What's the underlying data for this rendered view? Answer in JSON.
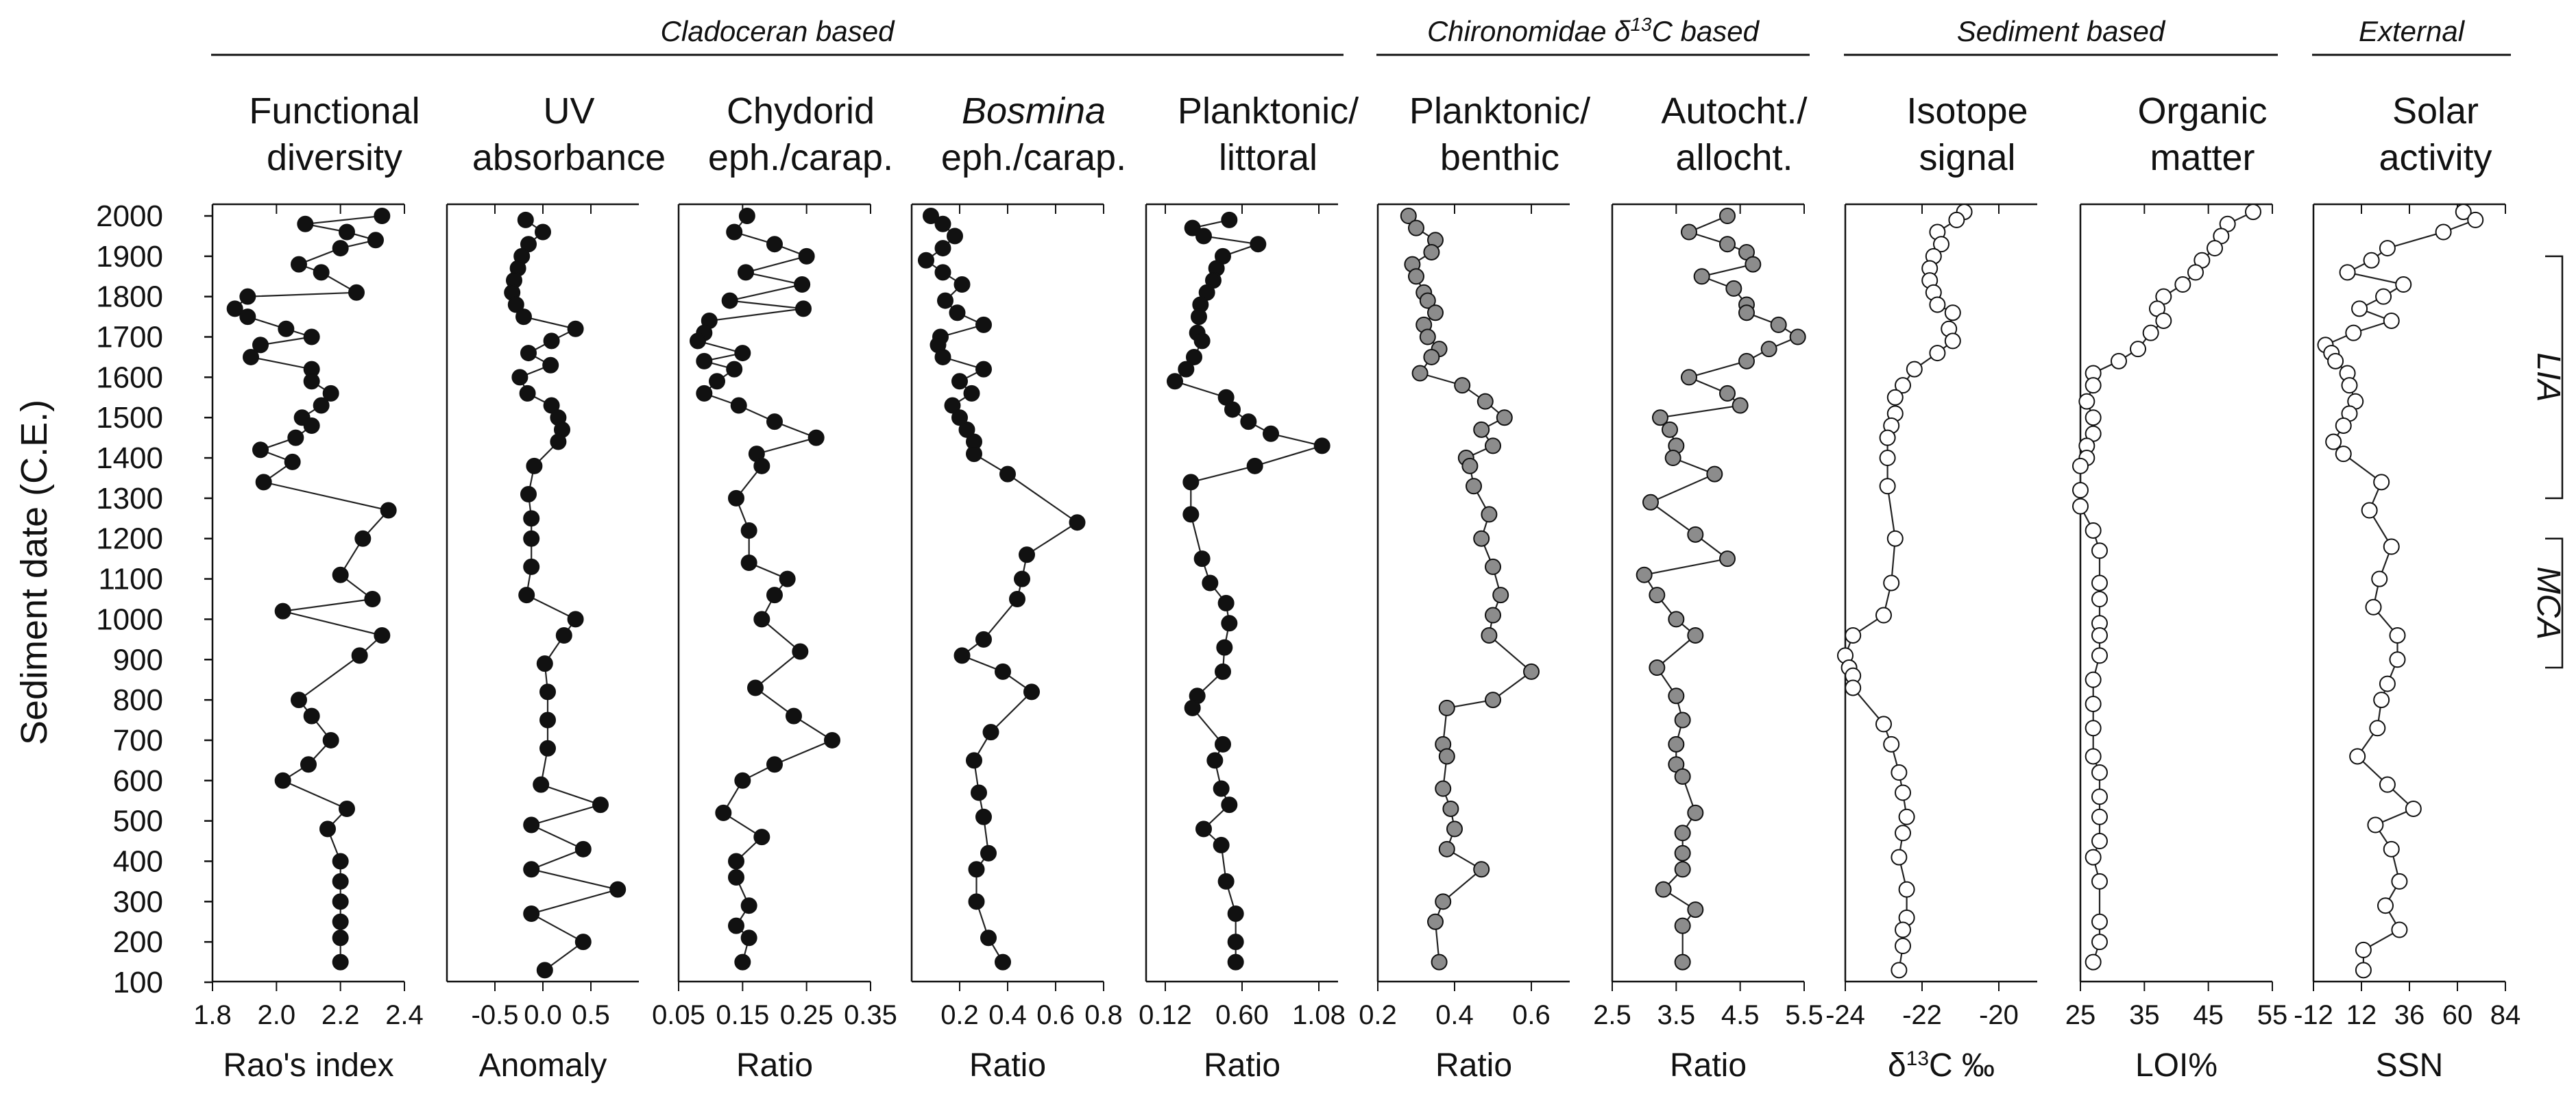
{
  "y_axis": {
    "label": "Sediment date (C.E.)",
    "min": 100,
    "max": 2000,
    "step": 100,
    "ticks": [
      "2000",
      "1900",
      "1800",
      "1700",
      "1600",
      "1500",
      "1400",
      "1300",
      "1200",
      "1100",
      "1000",
      "900",
      "800",
      "700",
      "600",
      "500",
      "400",
      "300",
      "200",
      "100"
    ]
  },
  "groups": [
    {
      "label": "Cladoceran based",
      "from": 0,
      "to": 4
    },
    {
      "label": "Chironomidae δ",
      "sup": "13",
      "suffix": "C based",
      "from": 5,
      "to": 6
    },
    {
      "label": "Sediment based",
      "from": 7,
      "to": 8
    },
    {
      "label": "External",
      "from": 9,
      "to": 9
    }
  ],
  "periods": [
    {
      "label": "LIA",
      "from": 1300,
      "to": 1900
    },
    {
      "label": "MCA",
      "from": 880,
      "to": 1200
    }
  ],
  "colors": {
    "black": "#111111",
    "gray": "#8c8c8c",
    "white": "#ffffff"
  },
  "chart_data": [
    {
      "type": "line",
      "title_line1": "Functional",
      "title_line2": "diversity",
      "xlabel": "Rao's index",
      "marker": "black",
      "xlim": [
        1.8,
        2.4
      ],
      "x_ticks": [
        1.8,
        2.0,
        2.2,
        2.4
      ],
      "x_tick_labels": [
        "1.8",
        "2.0",
        "2.2",
        "2.4"
      ],
      "y": [
        2000,
        1980,
        1960,
        1940,
        1920,
        1880,
        1860,
        1810,
        1800,
        1770,
        1750,
        1720,
        1700,
        1680,
        1650,
        1620,
        1590,
        1560,
        1530,
        1500,
        1480,
        1450,
        1420,
        1390,
        1340,
        1270,
        1200,
        1110,
        1050,
        1020,
        960,
        910,
        800,
        760,
        700,
        640,
        600,
        530,
        480,
        400,
        350,
        300,
        250,
        210,
        150
      ],
      "values": [
        2.33,
        2.09,
        2.22,
        2.31,
        2.2,
        2.07,
        2.14,
        2.25,
        1.91,
        1.87,
        1.91,
        2.03,
        2.11,
        1.95,
        1.92,
        2.11,
        2.11,
        2.17,
        2.14,
        2.08,
        2.11,
        2.06,
        1.95,
        2.05,
        1.96,
        2.35,
        2.27,
        2.2,
        2.3,
        2.02,
        2.33,
        2.26,
        2.07,
        2.11,
        2.17,
        2.1,
        2.02,
        2.22,
        2.16,
        2.2,
        2.2,
        2.2,
        2.2,
        2.2,
        2.2
      ]
    },
    {
      "type": "line",
      "title_line1": "UV",
      "title_line2": "absorbance",
      "xlabel": "Anomaly",
      "marker": "black",
      "xlim": [
        -1.0,
        1.0
      ],
      "x_ticks": [
        -0.5,
        0.0,
        0.5
      ],
      "x_tick_labels": [
        "-0.5",
        "0.0",
        "0.5"
      ],
      "y": [
        1990,
        1960,
        1930,
        1900,
        1870,
        1840,
        1810,
        1780,
        1750,
        1720,
        1690,
        1660,
        1630,
        1600,
        1560,
        1530,
        1500,
        1470,
        1440,
        1380,
        1310,
        1250,
        1200,
        1130,
        1060,
        1000,
        960,
        890,
        820,
        750,
        680,
        590,
        540,
        490,
        430,
        380,
        330,
        270,
        200,
        130
      ],
      "values": [
        -0.18,
        0.0,
        -0.15,
        -0.22,
        -0.26,
        -0.3,
        -0.32,
        -0.28,
        -0.2,
        0.34,
        0.09,
        -0.15,
        0.08,
        -0.24,
        -0.16,
        0.09,
        0.16,
        0.2,
        0.16,
        -0.09,
        -0.15,
        -0.12,
        -0.12,
        -0.12,
        -0.17,
        0.34,
        0.22,
        0.02,
        0.05,
        0.05,
        0.05,
        -0.02,
        0.6,
        -0.12,
        0.42,
        -0.12,
        0.78,
        -0.12,
        0.42,
        0.02
      ]
    },
    {
      "type": "line",
      "title_line1": "Chydorid",
      "title_line2": "eph./carap.",
      "xlabel": "Ratio",
      "marker": "black",
      "xlim": [
        0.05,
        0.35
      ],
      "x_ticks": [
        0.05,
        0.15,
        0.25,
        0.35
      ],
      "x_tick_labels": [
        "0.05",
        "0.15",
        "0.25",
        "0.35"
      ],
      "y": [
        2000,
        1960,
        1930,
        1900,
        1860,
        1830,
        1790,
        1770,
        1740,
        1710,
        1690,
        1660,
        1640,
        1620,
        1590,
        1560,
        1530,
        1490,
        1450,
        1410,
        1380,
        1300,
        1220,
        1140,
        1100,
        1060,
        1000,
        920,
        830,
        760,
        700,
        640,
        600,
        520,
        460,
        400,
        360,
        290,
        240,
        210,
        150
      ],
      "values": [
        0.157,
        0.137,
        0.2,
        0.25,
        0.155,
        0.243,
        0.13,
        0.245,
        0.098,
        0.09,
        0.08,
        0.15,
        0.09,
        0.137,
        0.11,
        0.09,
        0.144,
        0.2,
        0.265,
        0.172,
        0.18,
        0.14,
        0.16,
        0.16,
        0.22,
        0.2,
        0.18,
        0.24,
        0.17,
        0.23,
        0.29,
        0.2,
        0.15,
        0.12,
        0.18,
        0.14,
        0.14,
        0.16,
        0.14,
        0.16,
        0.15
      ]
    },
    {
      "type": "line",
      "title_line1": "Bosmina",
      "title_line2": "eph./carap.",
      "title_italic": true,
      "xlabel": "Ratio",
      "marker": "black",
      "xlim": [
        0.0,
        0.8
      ],
      "x_ticks": [
        0.2,
        0.4,
        0.6,
        0.8
      ],
      "x_tick_labels": [
        "0.2",
        "0.4",
        "0.6",
        "0.8"
      ],
      "y": [
        2000,
        1980,
        1950,
        1920,
        1890,
        1860,
        1830,
        1790,
        1760,
        1730,
        1700,
        1680,
        1650,
        1620,
        1590,
        1560,
        1530,
        1500,
        1470,
        1440,
        1410,
        1360,
        1240,
        1160,
        1100,
        1050,
        950,
        910,
        870,
        820,
        720,
        650,
        570,
        510,
        420,
        380,
        300,
        210,
        150
      ],
      "values": [
        0.08,
        0.13,
        0.18,
        0.13,
        0.06,
        0.13,
        0.21,
        0.14,
        0.19,
        0.3,
        0.12,
        0.11,
        0.13,
        0.3,
        0.2,
        0.25,
        0.17,
        0.2,
        0.23,
        0.26,
        0.26,
        0.4,
        0.69,
        0.48,
        0.46,
        0.44,
        0.3,
        0.21,
        0.38,
        0.5,
        0.33,
        0.26,
        0.28,
        0.3,
        0.32,
        0.27,
        0.27,
        0.32,
        0.38
      ]
    },
    {
      "type": "line",
      "title_line1": "Planktonic/",
      "title_line2": "littoral",
      "xlabel": "Ratio",
      "marker": "black",
      "xlim": [
        0.0,
        1.2
      ],
      "x_ticks": [
        0.12,
        0.6,
        1.08
      ],
      "x_tick_labels": [
        "0.12",
        "0.60",
        "1.08"
      ],
      "y": [
        1990,
        1970,
        1950,
        1930,
        1900,
        1870,
        1840,
        1810,
        1780,
        1750,
        1710,
        1690,
        1650,
        1620,
        1590,
        1550,
        1520,
        1490,
        1460,
        1430,
        1380,
        1340,
        1260,
        1150,
        1090,
        1040,
        990,
        930,
        870,
        810,
        780,
        690,
        650,
        580,
        540,
        480,
        440,
        350,
        270,
        200,
        150
      ],
      "values": [
        0.52,
        0.29,
        0.36,
        0.7,
        0.48,
        0.44,
        0.42,
        0.38,
        0.34,
        0.33,
        0.32,
        0.35,
        0.3,
        0.25,
        0.18,
        0.5,
        0.54,
        0.64,
        0.78,
        1.1,
        0.68,
        0.28,
        0.28,
        0.35,
        0.4,
        0.5,
        0.52,
        0.49,
        0.48,
        0.32,
        0.29,
        0.48,
        0.43,
        0.47,
        0.52,
        0.36,
        0.47,
        0.5,
        0.56,
        0.56,
        0.56
      ]
    },
    {
      "type": "line",
      "title_line1": "Planktonic/",
      "title_line2": "benthic",
      "xlabel": "Ratio",
      "marker": "gray",
      "xlim": [
        0.2,
        0.7
      ],
      "x_ticks": [
        0.2,
        0.4,
        0.6
      ],
      "x_tick_labels": [
        "0.2",
        "0.4",
        "0.6"
      ],
      "y": [
        2000,
        1970,
        1940,
        1910,
        1880,
        1850,
        1810,
        1790,
        1760,
        1730,
        1700,
        1670,
        1650,
        1610,
        1580,
        1540,
        1500,
        1470,
        1430,
        1400,
        1380,
        1330,
        1260,
        1200,
        1130,
        1060,
        1010,
        960,
        870,
        800,
        780,
        690,
        660,
        580,
        530,
        480,
        430,
        380,
        300,
        250,
        150
      ],
      "values": [
        0.28,
        0.3,
        0.35,
        0.34,
        0.29,
        0.3,
        0.32,
        0.33,
        0.35,
        0.32,
        0.33,
        0.36,
        0.34,
        0.31,
        0.42,
        0.48,
        0.53,
        0.47,
        0.5,
        0.43,
        0.44,
        0.45,
        0.49,
        0.47,
        0.5,
        0.52,
        0.5,
        0.49,
        0.6,
        0.5,
        0.38,
        0.37,
        0.38,
        0.37,
        0.39,
        0.4,
        0.38,
        0.47,
        0.37,
        0.35,
        0.36
      ]
    },
    {
      "type": "line",
      "title_line1": "Autocht./",
      "title_line2": "allocht.",
      "xlabel": "Ratio",
      "marker": "gray",
      "xlim": [
        2.5,
        5.5
      ],
      "x_ticks": [
        2.5,
        3.5,
        4.5,
        5.5
      ],
      "x_tick_labels": [
        "2.5",
        "3.5",
        "4.5",
        "5.5"
      ],
      "y": [
        2000,
        1960,
        1930,
        1910,
        1880,
        1850,
        1820,
        1780,
        1760,
        1730,
        1700,
        1670,
        1640,
        1600,
        1560,
        1530,
        1500,
        1470,
        1430,
        1400,
        1360,
        1290,
        1210,
        1150,
        1110,
        1060,
        1000,
        960,
        880,
        810,
        750,
        690,
        640,
        610,
        520,
        470,
        420,
        380,
        330,
        280,
        240,
        150
      ],
      "values": [
        4.3,
        3.7,
        4.3,
        4.6,
        4.7,
        3.9,
        4.4,
        4.6,
        4.6,
        5.1,
        5.4,
        4.95,
        4.6,
        3.7,
        4.3,
        4.5,
        3.25,
        3.4,
        3.5,
        3.45,
        4.1,
        3.1,
        3.8,
        4.3,
        3.0,
        3.2,
        3.5,
        3.8,
        3.2,
        3.5,
        3.6,
        3.5,
        3.5,
        3.6,
        3.8,
        3.6,
        3.6,
        3.6,
        3.3,
        3.8,
        3.6,
        3.6
      ]
    },
    {
      "type": "line",
      "title_line1": "Isotope",
      "title_line2": "signal",
      "xlabel": "δ¹³C ‰",
      "marker": "white",
      "xlim": [
        -24,
        -19
      ],
      "x_ticks": [
        -24,
        -22,
        -20
      ],
      "x_tick_labels": [
        "-24",
        "-22",
        "-20"
      ],
      "y": [
        2010,
        1990,
        1960,
        1930,
        1900,
        1870,
        1840,
        1810,
        1780,
        1760,
        1720,
        1690,
        1660,
        1620,
        1580,
        1550,
        1510,
        1480,
        1450,
        1400,
        1330,
        1200,
        1090,
        1010,
        960,
        910,
        880,
        860,
        830,
        740,
        690,
        620,
        570,
        510,
        470,
        410,
        330,
        260,
        230,
        190,
        130
      ],
      "values": [
        -20.9,
        -21.1,
        -21.6,
        -21.5,
        -21.7,
        -21.8,
        -21.8,
        -21.7,
        -21.6,
        -21.2,
        -21.3,
        -21.2,
        -21.6,
        -22.2,
        -22.5,
        -22.7,
        -22.7,
        -22.8,
        -22.9,
        -22.9,
        -22.9,
        -22.7,
        -22.8,
        -23.0,
        -23.8,
        -24.0,
        -23.9,
        -23.8,
        -23.8,
        -23.0,
        -22.8,
        -22.6,
        -22.5,
        -22.4,
        -22.5,
        -22.6,
        -22.4,
        -22.4,
        -22.5,
        -22.5,
        -22.6
      ]
    },
    {
      "type": "line",
      "title_line1": "Organic",
      "title_line2": "matter",
      "xlabel": "LOI%",
      "marker": "white",
      "xlim": [
        25,
        55
      ],
      "x_ticks": [
        25,
        35,
        45,
        55
      ],
      "x_tick_labels": [
        "25",
        "35",
        "45",
        "55"
      ],
      "y": [
        2010,
        1980,
        1950,
        1920,
        1890,
        1860,
        1830,
        1800,
        1770,
        1740,
        1710,
        1670,
        1640,
        1610,
        1580,
        1540,
        1500,
        1460,
        1430,
        1400,
        1380,
        1320,
        1280,
        1220,
        1170,
        1090,
        1050,
        990,
        960,
        910,
        850,
        790,
        730,
        660,
        620,
        560,
        510,
        450,
        410,
        350,
        250,
        200,
        150
      ],
      "values": [
        52.0,
        48.0,
        47.0,
        46.0,
        44.0,
        43.0,
        41.0,
        38.0,
        37.0,
        38.0,
        36.0,
        34.0,
        31.0,
        27.0,
        27.0,
        26.0,
        27.0,
        27.0,
        26.0,
        26.0,
        25.0,
        25.0,
        25.0,
        27.0,
        28.0,
        28.0,
        28.0,
        28.0,
        28.0,
        28.0,
        27.0,
        27.0,
        27.0,
        27.0,
        28.0,
        28.0,
        28.0,
        28.0,
        27.0,
        28.0,
        28.0,
        28.0,
        27.0
      ]
    },
    {
      "type": "line",
      "title_line1": "Solar",
      "title_line2": "activity",
      "xlabel": "SSN",
      "marker": "white",
      "xlim": [
        -12,
        84
      ],
      "x_ticks": [
        -12,
        12,
        36,
        60,
        84
      ],
      "x_tick_labels": [
        "-12",
        "12",
        "36",
        "60",
        "84"
      ],
      "y": [
        2010,
        1990,
        1960,
        1920,
        1890,
        1860,
        1830,
        1800,
        1770,
        1740,
        1710,
        1680,
        1660,
        1640,
        1610,
        1580,
        1540,
        1510,
        1480,
        1440,
        1410,
        1340,
        1270,
        1180,
        1100,
        1030,
        960,
        900,
        840,
        800,
        730,
        660,
        590,
        530,
        490,
        430,
        350,
        290,
        230,
        180,
        130
      ],
      "values": [
        63.0,
        69.0,
        53.0,
        25.0,
        17.0,
        5.0,
        33.0,
        23.0,
        11.0,
        27.0,
        8.0,
        -6.0,
        -3.0,
        -1.0,
        5.0,
        6.0,
        9.0,
        6.0,
        3.0,
        -2.0,
        3.0,
        22.0,
        16.0,
        27.0,
        21.0,
        18.0,
        30.0,
        30.0,
        25.0,
        22.0,
        20.0,
        10.0,
        25.0,
        38.0,
        19.0,
        27.0,
        31.0,
        24.0,
        31.0,
        13.0,
        13.0
      ]
    }
  ]
}
